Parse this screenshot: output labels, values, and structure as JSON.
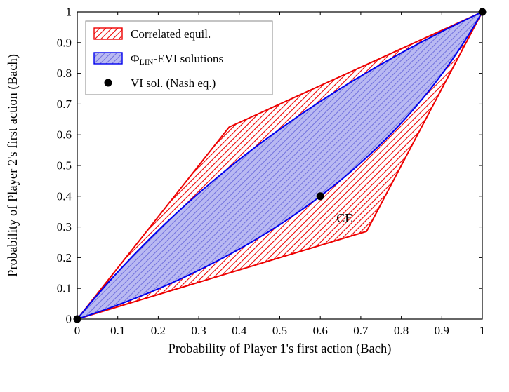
{
  "chart_data": {
    "type": "area",
    "title": "",
    "xlabel": "Probability of Player 1's first action (Bach)",
    "ylabel": "Probability of Player 2's first action (Bach)",
    "xlim": [
      0,
      1
    ],
    "ylim": [
      0,
      1
    ],
    "grid": false,
    "legend_position": "top-left",
    "xticks": {
      "values": [
        0,
        0.1,
        0.2,
        0.3,
        0.4,
        0.5,
        0.6,
        0.7,
        0.8,
        0.9,
        1
      ],
      "labels": [
        "0",
        "0.1",
        "0.2",
        "0.3",
        "0.4",
        "0.5",
        "0.6",
        "0.7",
        "0.8",
        "0.9",
        "1"
      ]
    },
    "yticks": {
      "values": [
        0,
        0.1,
        0.2,
        0.3,
        0.4,
        0.5,
        0.6,
        0.7,
        0.8,
        0.9,
        1
      ],
      "labels": [
        "0",
        "0.1",
        "0.2",
        "0.3",
        "0.4",
        "0.5",
        "0.6",
        "0.7",
        "0.8",
        "0.9",
        "1"
      ]
    },
    "series": [
      {
        "name": "Correlated equil.",
        "type": "polygon",
        "color": "#ee0000",
        "fill": "red-hatch-on-white",
        "vertices": [
          [
            0,
            0
          ],
          [
            0.375,
            0.625
          ],
          [
            1,
            1
          ],
          [
            0.7143,
            0.2857
          ]
        ]
      },
      {
        "name": "PhiLIN-EVI solutions",
        "type": "curved-lens",
        "color": "#0000ee",
        "fill": "blue-hatch-on-lightblue",
        "upper_curve": {
          "from": [
            0,
            0
          ],
          "control": [
            0.38,
            0.62
          ],
          "to": [
            1,
            1
          ]
        },
        "lower_curve": {
          "from": [
            0,
            0
          ],
          "control": [
            0.7,
            0.3
          ],
          "to": [
            1,
            1
          ]
        }
      },
      {
        "name": "VI sol. (Nash eq.)",
        "type": "scatter",
        "color": "#000000",
        "points": [
          [
            0,
            0
          ],
          [
            0.6,
            0.4
          ],
          [
            1,
            1
          ]
        ]
      }
    ],
    "annotations": [
      {
        "text": "CE",
        "x": 0.66,
        "y": 0.315,
        "color": "#ee0000"
      }
    ]
  },
  "legend": {
    "items": [
      {
        "label": "Correlated equil.",
        "swatch": "red-hatch"
      },
      {
        "label_parts": {
          "prefix": "Φ",
          "subscript": "LIN",
          "suffix": "-EVI solutions"
        },
        "swatch": "blue-fill"
      },
      {
        "label": "VI sol. (Nash eq.)",
        "swatch": "black-dot"
      }
    ]
  },
  "colors": {
    "red": "#ee0000",
    "blue": "#0000ee",
    "blue_fill": "#b9b9f2",
    "blue_hatch": "#7070dd",
    "axis": "#000000",
    "legend_border": "#888888"
  }
}
